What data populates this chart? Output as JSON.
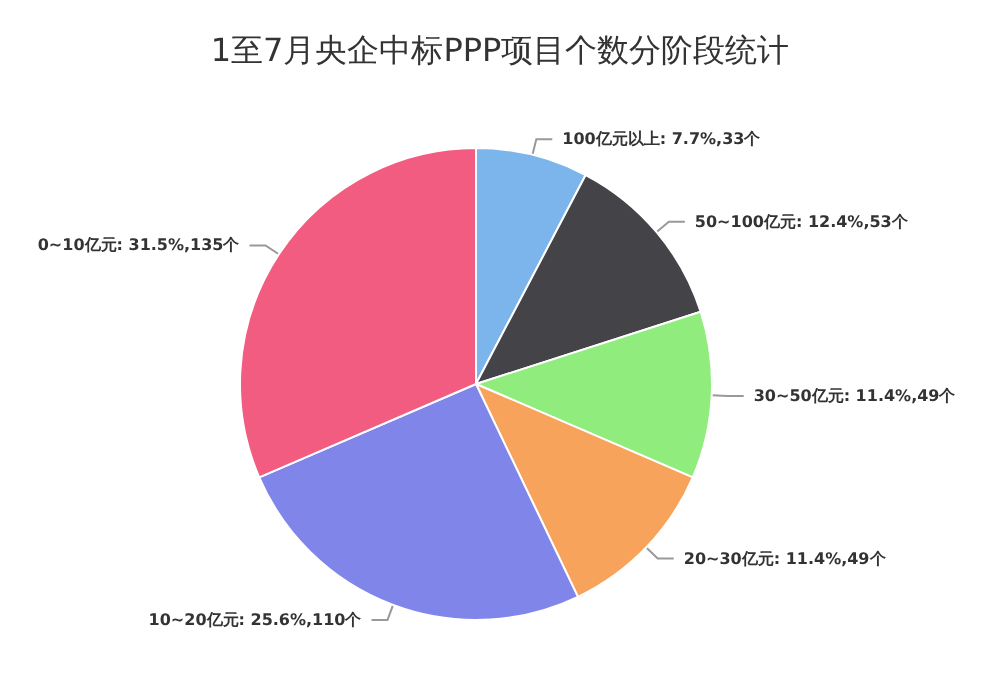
{
  "chart_data": {
    "type": "pie",
    "title": "1至7月央企中标PPP项目个数分阶段统计",
    "categories": [
      "100亿元以上",
      "50~100亿元",
      "30~50亿元",
      "20~30亿元",
      "10~20亿元",
      "0~10亿元"
    ],
    "values": [
      33,
      53,
      49,
      49,
      110,
      135
    ],
    "value_labels": [
      "7.7%,33个",
      "12.4%,53个",
      "11.4%,49个",
      "11.4%,49个",
      "25.6%,110个",
      "31.5%,135个"
    ],
    "colors": [
      "#7cb5ec",
      "#434348",
      "#90ed7d",
      "#f7a35c",
      "#8085e9",
      "#f15c80"
    ]
  }
}
